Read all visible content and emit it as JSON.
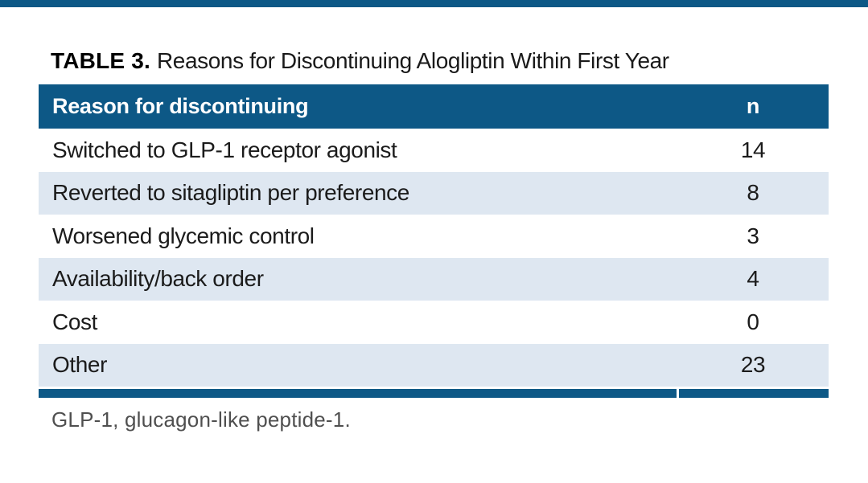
{
  "colors": {
    "accent": "#0d5886",
    "row_alt": "#dee7f1",
    "row_text": "#1b1b1b",
    "footnote_text": "#4f4f4f"
  },
  "title": {
    "label": "TABLE 3.",
    "text": "Reasons for Discontinuing Alogliptin Within First Year"
  },
  "table": {
    "header": {
      "reason": "Reason for discontinuing",
      "n": "n"
    },
    "rows": [
      {
        "reason": "Switched to GLP-1 receptor agonist",
        "n": "14"
      },
      {
        "reason": "Reverted to sitagliptin per preference",
        "n": "8"
      },
      {
        "reason": "Worsened glycemic control",
        "n": "3"
      },
      {
        "reason": "Availability/back order",
        "n": "4"
      },
      {
        "reason": "Cost",
        "n": "0"
      },
      {
        "reason": "Other",
        "n": "23"
      }
    ]
  },
  "footnote": "GLP-1, glucagon-like peptide-1.",
  "chart_data": {
    "type": "table",
    "title": "TABLE 3. Reasons for Discontinuing Alogliptin Within First Year",
    "columns": [
      "Reason for discontinuing",
      "n"
    ],
    "rows": [
      [
        "Switched to GLP-1 receptor agonist",
        14
      ],
      [
        "Reverted to sitagliptin per preference",
        8
      ],
      [
        "Worsened glycemic control",
        3
      ],
      [
        "Availability/back order",
        4
      ],
      [
        "Cost",
        0
      ],
      [
        "Other",
        23
      ]
    ]
  }
}
